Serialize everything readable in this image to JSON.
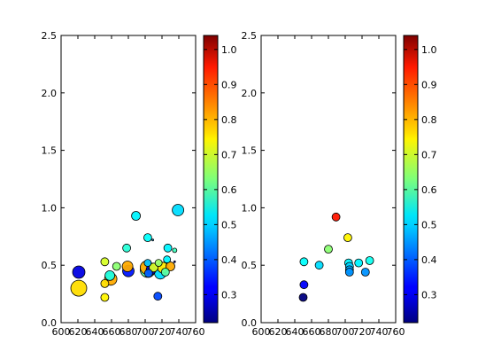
{
  "chart_data": [
    {
      "type": "scatter",
      "title": "",
      "xlabel": "",
      "ylabel": "",
      "xlim": [
        600,
        760
      ],
      "ylim": [
        0,
        2.5
      ],
      "x_ticks": [
        "600",
        "620",
        "640",
        "660",
        "680",
        "700",
        "720",
        "740",
        "760"
      ],
      "y_ticks": [
        "0.0",
        "0.5",
        "1.0",
        "1.5",
        "2.0",
        "2.5"
      ],
      "grid": false,
      "colorbar": {
        "range": [
          0.22,
          1.04
        ],
        "ticks": [
          "0.3",
          "0.4",
          "0.5",
          "0.6",
          "0.7",
          "0.8",
          "0.9",
          "1.0"
        ]
      },
      "points": [
        {
          "x": 621,
          "y": 0.44,
          "c": 0.3,
          "s": 14
        },
        {
          "x": 621,
          "y": 0.3,
          "c": 0.76,
          "s": 18
        },
        {
          "x": 652,
          "y": 0.53,
          "c": 0.7,
          "s": 9
        },
        {
          "x": 652,
          "y": 0.34,
          "c": 0.76,
          "s": 9
        },
        {
          "x": 652,
          "y": 0.22,
          "c": 0.74,
          "s": 9
        },
        {
          "x": 658,
          "y": 0.41,
          "c": 0.55,
          "s": 11
        },
        {
          "x": 659,
          "y": 0.38,
          "c": 0.8,
          "s": 14
        },
        {
          "x": 666,
          "y": 0.49,
          "c": 0.64,
          "s": 9
        },
        {
          "x": 678,
          "y": 0.65,
          "c": 0.56,
          "s": 9
        },
        {
          "x": 679,
          "y": 0.49,
          "c": 0.8,
          "s": 12
        },
        {
          "x": 680,
          "y": 0.45,
          "c": 0.34,
          "s": 13
        },
        {
          "x": 689,
          "y": 0.93,
          "c": 0.52,
          "s": 10
        },
        {
          "x": 703,
          "y": 0.74,
          "c": 0.53,
          "s": 9
        },
        {
          "x": 702,
          "y": 0.48,
          "c": 0.8,
          "s": 15
        },
        {
          "x": 703,
          "y": 0.46,
          "c": 0.6,
          "s": 17
        },
        {
          "x": 704,
          "y": 0.43,
          "c": 0.4,
          "s": 9
        },
        {
          "x": 703,
          "y": 0.52,
          "c": 0.48,
          "s": 8
        },
        {
          "x": 707,
          "y": 0.46,
          "c": 0.3,
          "s": 11
        },
        {
          "x": 710,
          "y": 0.48,
          "c": 0.7,
          "s": 10
        },
        {
          "x": 715,
          "y": 0.23,
          "c": 0.38,
          "s": 9
        },
        {
          "x": 716,
          "y": 0.52,
          "c": 0.65,
          "s": 8
        },
        {
          "x": 718,
          "y": 0.43,
          "c": 0.5,
          "s": 13
        },
        {
          "x": 721,
          "y": 0.48,
          "c": 0.75,
          "s": 12
        },
        {
          "x": 724,
          "y": 0.44,
          "c": 0.6,
          "s": 9
        },
        {
          "x": 726,
          "y": 0.55,
          "c": 0.52,
          "s": 8
        },
        {
          "x": 727,
          "y": 0.65,
          "c": 0.52,
          "s": 9
        },
        {
          "x": 730,
          "y": 0.49,
          "c": 0.8,
          "s": 10
        },
        {
          "x": 735,
          "y": 0.63,
          "c": 0.58,
          "s": 5
        },
        {
          "x": 739,
          "y": 0.98,
          "c": 0.5,
          "s": 13
        },
        {
          "x": 709,
          "y": 0.72,
          "c": 0.45,
          "s": 2
        },
        {
          "x": 735,
          "y": 0.53,
          "c": 0.3,
          "s": 2
        }
      ]
    },
    {
      "type": "scatter",
      "title": "",
      "xlabel": "",
      "ylabel": "",
      "xlim": [
        600,
        760
      ],
      "ylim": [
        0,
        2.5
      ],
      "x_ticks": [
        "600",
        "620",
        "640",
        "660",
        "680",
        "700",
        "720",
        "740",
        "760"
      ],
      "y_ticks": [
        "0.0",
        "0.5",
        "1.0",
        "1.5",
        "2.0",
        "2.5"
      ],
      "grid": false,
      "colorbar": {
        "range": [
          0.22,
          1.04
        ],
        "ticks": [
          "0.3",
          "0.4",
          "0.5",
          "0.6",
          "0.7",
          "0.8",
          "0.9",
          "1.0"
        ]
      },
      "points": [
        {
          "x": 650,
          "y": 0.22,
          "c": 0.22,
          "s": 9
        },
        {
          "x": 651,
          "y": 0.33,
          "c": 0.32,
          "s": 9
        },
        {
          "x": 651,
          "y": 0.53,
          "c": 0.53,
          "s": 9
        },
        {
          "x": 669,
          "y": 0.5,
          "c": 0.5,
          "s": 9
        },
        {
          "x": 680,
          "y": 0.64,
          "c": 0.64,
          "s": 9
        },
        {
          "x": 689,
          "y": 0.92,
          "c": 0.92,
          "s": 9
        },
        {
          "x": 703,
          "y": 0.74,
          "c": 0.74,
          "s": 9
        },
        {
          "x": 704,
          "y": 0.52,
          "c": 0.52,
          "s": 9
        },
        {
          "x": 705,
          "y": 0.49,
          "c": 0.49,
          "s": 9
        },
        {
          "x": 705,
          "y": 0.46,
          "c": 0.46,
          "s": 9
        },
        {
          "x": 705,
          "y": 0.44,
          "c": 0.44,
          "s": 9
        },
        {
          "x": 716,
          "y": 0.52,
          "c": 0.52,
          "s": 9
        },
        {
          "x": 724,
          "y": 0.44,
          "c": 0.44,
          "s": 9
        },
        {
          "x": 729,
          "y": 0.54,
          "c": 0.54,
          "s": 9
        }
      ]
    }
  ]
}
